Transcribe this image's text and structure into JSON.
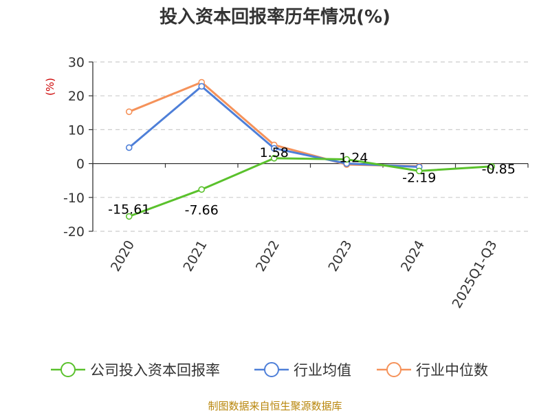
{
  "chart_data": {
    "type": "line",
    "title": "投入资本回报率历年情况(%)",
    "ylabel": "(%)",
    "xlabel": "",
    "categories": [
      "2020",
      "2021",
      "2022",
      "2023",
      "2024",
      "2025Q1-Q3"
    ],
    "ylim": [
      -20,
      30
    ],
    "yticks": [
      "30",
      "20",
      "10",
      "0",
      "-10",
      "-20"
    ],
    "grid": "horizontal-dashed",
    "legend_position": "bottom",
    "series": [
      {
        "name": "公司投入资本回报率",
        "color": "#5ac12c",
        "values": [
          -15.61,
          -7.66,
          1.58,
          1.24,
          -2.19,
          -0.85
        ],
        "labels": [
          "-15.61",
          "-7.66",
          "1.58",
          "1.24",
          "-2.19",
          "-0.85"
        ]
      },
      {
        "name": "行业均值",
        "color": "#4e7fd8",
        "values": [
          4.7,
          22.8,
          4.5,
          0.0,
          -1.0,
          null
        ]
      },
      {
        "name": "行业中位数",
        "color": "#f5925a",
        "values": [
          15.3,
          24.0,
          5.5,
          -0.3,
          -0.8,
          null
        ]
      }
    ]
  },
  "source": "制图数据来自恒生聚源数据库"
}
